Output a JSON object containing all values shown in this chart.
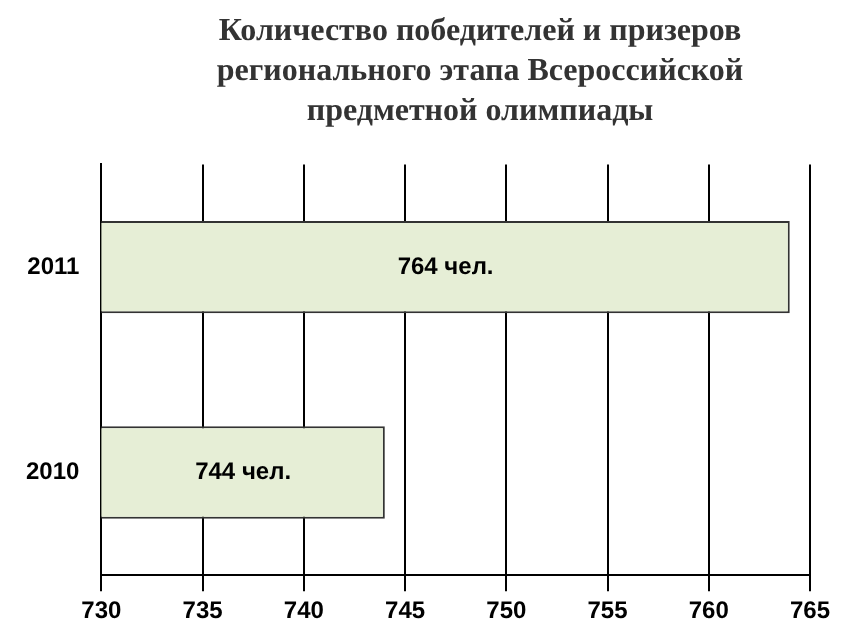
{
  "chart_data": {
    "type": "bar",
    "orientation": "horizontal",
    "title": "Количество победителей и призеров регионального этапа Всероссийской предметной олимпиады",
    "categories": [
      "2011",
      "2010"
    ],
    "values": [
      764,
      744
    ],
    "value_labels": [
      "764 чел.",
      "744 чел."
    ],
    "color": "#e6eed6",
    "xlim": [
      730,
      765
    ],
    "xticks": [
      730,
      735,
      740,
      745,
      750,
      755,
      760,
      765
    ],
    "grid": "x"
  }
}
